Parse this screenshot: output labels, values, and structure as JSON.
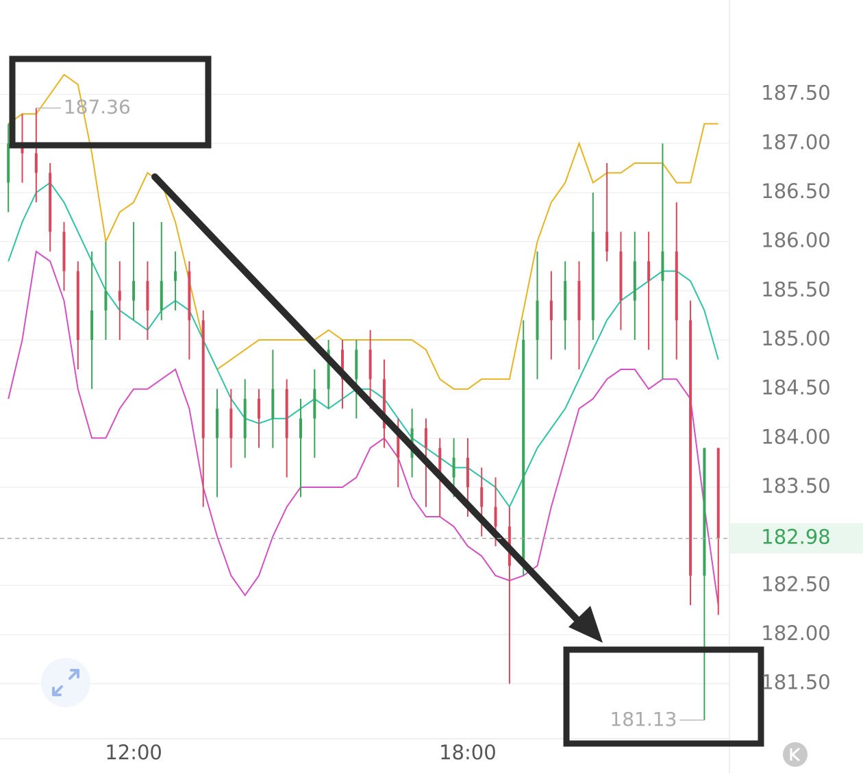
{
  "chart_data": {
    "type": "ohlc",
    "x": [
      9.75,
      10,
      10.25,
      10.5,
      10.75,
      11,
      11.25,
      11.5,
      11.75,
      12,
      12.25,
      12.5,
      12.75,
      13,
      13.25,
      13.5,
      13.75,
      14,
      14.25,
      14.5,
      14.75,
      15,
      15.25,
      15.5,
      15.75,
      16,
      16.25,
      16.5,
      16.75,
      17,
      17.25,
      17.5,
      17.75,
      18,
      18.25,
      18.5,
      18.75,
      19,
      19.25,
      19.5,
      19.75,
      20,
      20.25,
      20.5,
      20.75,
      21,
      21.25,
      21.5,
      21.75,
      22,
      22.25,
      22.5
    ],
    "open": [
      186.6,
      187.0,
      186.9,
      186.7,
      186.1,
      185.7,
      185.0,
      185.3,
      185.5,
      185.4,
      185.6,
      185.3,
      185.6,
      185.7,
      185.2,
      184.0,
      184.3,
      184.0,
      184.4,
      184.2,
      184.5,
      184.0,
      184.2,
      184.5,
      184.9,
      184.6,
      184.9,
      184.6,
      184.1,
      183.8,
      184.1,
      183.9,
      183.6,
      183.8,
      183.5,
      183.3,
      183.1,
      182.7,
      185.0,
      185.4,
      185.2,
      185.6,
      185.2,
      186.1,
      185.9,
      185.4,
      185.8,
      185.6,
      185.9,
      185.2,
      182.6,
      183.9
    ],
    "close": [
      187.0,
      186.9,
      186.7,
      186.1,
      185.7,
      185.0,
      185.3,
      185.5,
      185.4,
      185.6,
      185.3,
      185.6,
      185.7,
      185.2,
      184.0,
      184.3,
      184.0,
      184.4,
      184.2,
      184.5,
      184.0,
      184.2,
      184.5,
      184.9,
      184.6,
      184.9,
      184.6,
      184.1,
      183.8,
      184.1,
      183.9,
      183.6,
      183.8,
      183.5,
      183.3,
      183.1,
      182.7,
      185.0,
      185.4,
      185.2,
      185.6,
      185.2,
      186.1,
      185.9,
      185.4,
      185.8,
      185.6,
      185.9,
      185.2,
      182.6,
      183.9,
      182.98
    ],
    "high": [
      187.2,
      187.3,
      187.36,
      186.8,
      186.2,
      185.8,
      185.9,
      186.0,
      185.8,
      186.2,
      185.8,
      186.2,
      185.9,
      185.8,
      185.3,
      184.5,
      184.5,
      184.6,
      184.5,
      184.9,
      184.6,
      184.4,
      184.7,
      185.0,
      185.0,
      185.0,
      185.1,
      184.8,
      184.2,
      184.3,
      184.2,
      184.0,
      184.0,
      184.0,
      183.7,
      183.6,
      183.3,
      185.2,
      185.9,
      185.7,
      185.8,
      185.8,
      186.5,
      186.8,
      186.1,
      186.1,
      186.1,
      187.0,
      186.4,
      185.4,
      183.9,
      183.9
    ],
    "low": [
      186.3,
      186.6,
      186.4,
      185.9,
      185.5,
      184.7,
      184.5,
      185.0,
      185.0,
      185.2,
      185.0,
      185.2,
      185.3,
      184.8,
      183.3,
      183.4,
      183.7,
      183.8,
      183.9,
      183.9,
      183.6,
      183.4,
      183.8,
      184.3,
      184.3,
      184.2,
      184.3,
      183.9,
      183.5,
      183.6,
      183.3,
      183.2,
      183.4,
      183.2,
      183.0,
      182.9,
      181.5,
      182.6,
      184.6,
      184.8,
      184.9,
      184.7,
      185.0,
      185.8,
      185.1,
      185.0,
      184.9,
      184.6,
      184.8,
      182.3,
      181.13,
      182.2
    ],
    "up_color": "#3aa55a",
    "down_color": "#d9475d",
    "bands": [
      {
        "color": "#e6b422",
        "values": [
          187.2,
          187.3,
          187.3,
          187.5,
          187.7,
          187.6,
          186.9,
          186.0,
          186.3,
          186.4,
          186.7,
          186.6,
          186.2,
          185.6,
          185.0,
          184.7,
          184.8,
          184.9,
          185.0,
          185.0,
          185.0,
          185.0,
          185.0,
          185.1,
          185.0,
          185.0,
          185.0,
          185.0,
          185.0,
          185.0,
          184.9,
          184.6,
          184.5,
          184.5,
          184.6,
          184.6,
          184.6,
          185.3,
          186.0,
          186.4,
          186.6,
          187.0,
          186.6,
          186.7,
          186.7,
          186.8,
          186.8,
          186.8,
          186.6,
          186.6,
          187.2,
          187.2
        ]
      },
      {
        "color": "#2dc2a6",
        "values": [
          185.8,
          186.2,
          186.5,
          186.6,
          186.4,
          186.1,
          185.8,
          185.5,
          185.3,
          185.2,
          185.1,
          185.3,
          185.4,
          185.3,
          185.0,
          184.7,
          184.4,
          184.2,
          184.15,
          184.2,
          184.2,
          184.3,
          184.4,
          184.3,
          184.4,
          184.5,
          184.5,
          184.4,
          184.2,
          184.0,
          183.9,
          183.8,
          183.7,
          183.7,
          183.6,
          183.5,
          183.3,
          183.6,
          183.9,
          184.1,
          184.3,
          184.6,
          184.9,
          185.2,
          185.4,
          185.5,
          185.6,
          185.7,
          185.7,
          185.6,
          185.3,
          184.8
        ]
      },
      {
        "color": "#d44fc0",
        "values": [
          184.4,
          185.0,
          185.9,
          185.8,
          185.4,
          184.5,
          184.0,
          184.0,
          184.3,
          184.5,
          184.5,
          184.6,
          184.7,
          184.3,
          183.5,
          183.0,
          182.6,
          182.4,
          182.6,
          183.0,
          183.3,
          183.5,
          183.5,
          183.5,
          183.5,
          183.6,
          183.9,
          184.0,
          183.8,
          183.4,
          183.2,
          183.2,
          183.1,
          182.9,
          182.8,
          182.6,
          182.55,
          182.6,
          182.7,
          183.3,
          183.8,
          184.3,
          184.4,
          184.6,
          184.7,
          184.7,
          184.5,
          184.6,
          184.6,
          184.4,
          183.3,
          182.3
        ]
      }
    ],
    "xlim": [
      9.6,
      22.7
    ],
    "xticks": [
      {
        "value": 12,
        "label": "12:00"
      },
      {
        "value": 18,
        "label": "18:00"
      }
    ],
    "ylim": [
      180.94,
      188.46
    ],
    "yticks": [
      {
        "value": 181.5,
        "label": "181.50"
      },
      {
        "value": 182,
        "label": "182.00"
      },
      {
        "value": 182.5,
        "label": "182.50"
      },
      {
        "value": 183.5,
        "label": "183.50"
      },
      {
        "value": 184,
        "label": "184.00"
      },
      {
        "value": 184.5,
        "label": "184.50"
      },
      {
        "value": 185,
        "label": "185.00"
      },
      {
        "value": 185.5,
        "label": "185.50"
      },
      {
        "value": 186,
        "label": "186.00"
      },
      {
        "value": 186.5,
        "label": "186.50"
      },
      {
        "value": 187,
        "label": "187.00"
      },
      {
        "value": 187.5,
        "label": "187.50"
      }
    ],
    "grid": true
  }
}
